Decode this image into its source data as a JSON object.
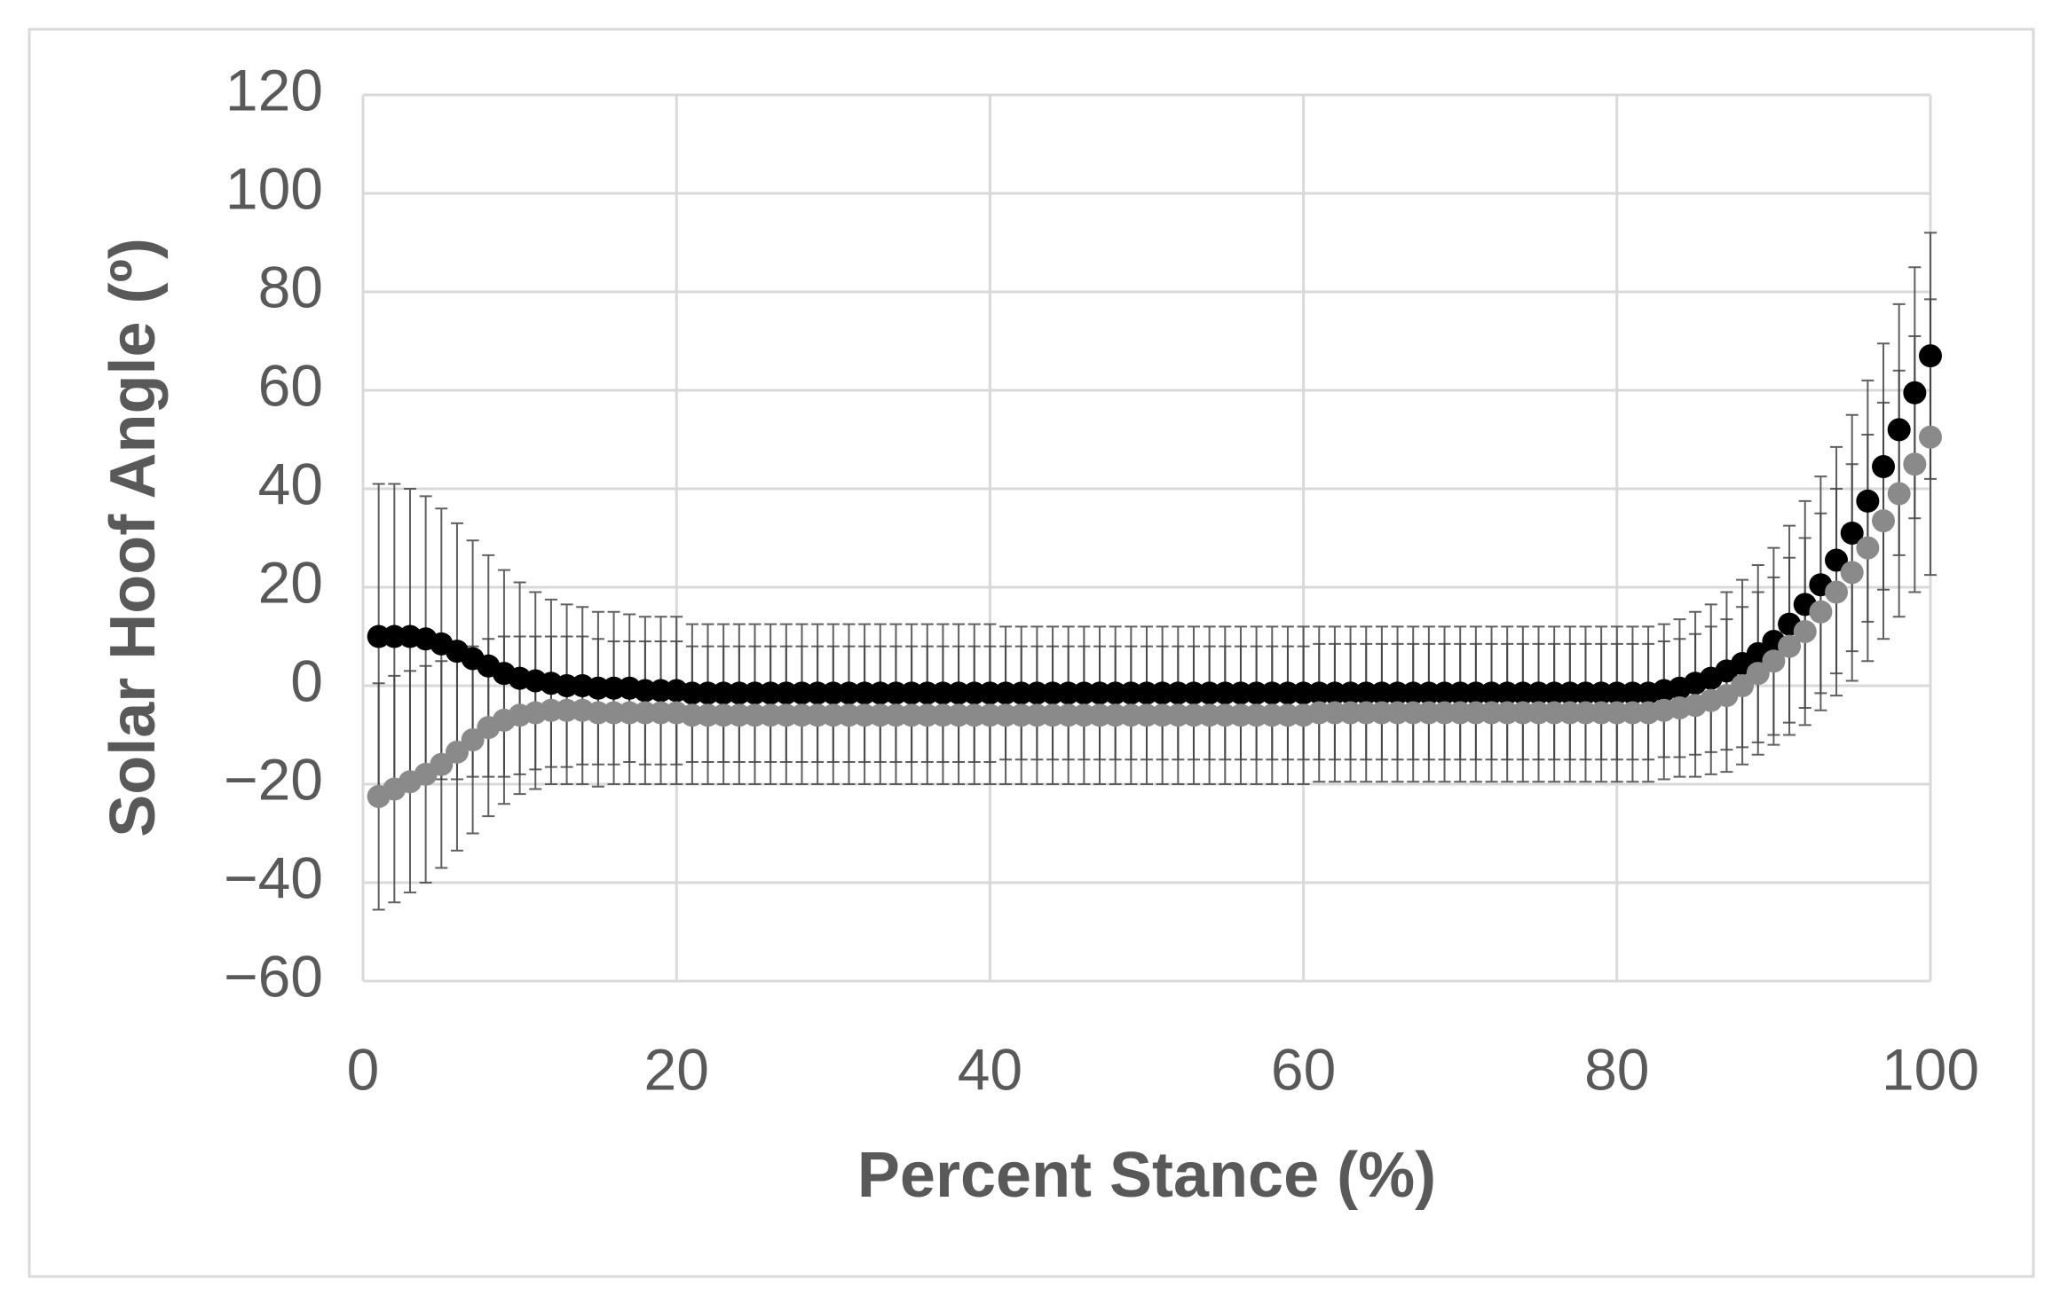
{
  "chart_data": {
    "type": "scatter",
    "xlabel": "Percent Stance (%)",
    "ylabel": "Solar Hoof Angle (º)",
    "x": [
      1,
      2,
      3,
      4,
      5,
      6,
      7,
      8,
      9,
      10,
      11,
      12,
      13,
      14,
      15,
      16,
      17,
      18,
      19,
      20,
      21,
      22,
      23,
      24,
      25,
      26,
      27,
      28,
      29,
      30,
      31,
      32,
      33,
      34,
      35,
      36,
      37,
      38,
      39,
      40,
      41,
      42,
      43,
      44,
      45,
      46,
      47,
      48,
      49,
      50,
      51,
      52,
      53,
      54,
      55,
      56,
      57,
      58,
      59,
      60,
      61,
      62,
      63,
      64,
      65,
      66,
      67,
      68,
      69,
      70,
      71,
      72,
      73,
      74,
      75,
      76,
      77,
      78,
      79,
      80,
      81,
      82,
      83,
      84,
      85,
      86,
      87,
      88,
      89,
      90,
      91,
      92,
      93,
      94,
      95,
      96,
      97,
      98,
      99,
      100
    ],
    "series": [
      {
        "color": "#000000",
        "values": [
          10,
          10,
          10,
          9.5,
          8.5,
          7,
          5.5,
          4,
          2.5,
          1.5,
          1,
          0.5,
          0,
          0,
          -0.5,
          -0.5,
          -0.5,
          -1,
          -1,
          -1,
          -1.5,
          -1.5,
          -1.5,
          -1.5,
          -1.5,
          -1.5,
          -1.5,
          -1.5,
          -1.5,
          -1.5,
          -1.5,
          -1.5,
          -1.5,
          -1.5,
          -1.5,
          -1.5,
          -1.5,
          -1.5,
          -1.5,
          -1.5,
          -1.5,
          -1.5,
          -1.5,
          -1.5,
          -1.5,
          -1.5,
          -1.5,
          -1.5,
          -1.5,
          -1.5,
          -1.5,
          -1.5,
          -1.5,
          -1.5,
          -1.5,
          -1.5,
          -1.5,
          -1.5,
          -1.5,
          -1.5,
          -1.5,
          -1.5,
          -1.5,
          -1.5,
          -1.5,
          -1.5,
          -1.5,
          -1.5,
          -1.5,
          -1.5,
          -1.5,
          -1.5,
          -1.5,
          -1.5,
          -1.5,
          -1.5,
          -1.5,
          -1.5,
          -1.5,
          -1.5,
          -1.5,
          -1.5,
          -1,
          -0.5,
          0.5,
          1.5,
          3,
          4.5,
          6.5,
          9,
          12.5,
          16.5,
          20.5,
          25.5,
          31,
          37.5,
          44.5,
          52,
          59.5,
          67
        ],
        "errors": [
          31,
          31,
          30,
          29,
          27.5,
          26,
          24,
          22.5,
          21,
          19.5,
          18,
          17,
          16.5,
          16,
          15.5,
          15.5,
          15,
          15,
          15,
          15,
          14,
          14,
          14,
          14,
          14,
          14,
          14,
          14,
          14,
          14,
          14,
          14,
          14,
          14,
          14,
          14,
          14,
          14,
          14,
          14,
          13.5,
          13.5,
          13.5,
          13.5,
          13.5,
          13.5,
          13.5,
          13.5,
          13.5,
          13.5,
          13.5,
          13.5,
          13.5,
          13.5,
          13.5,
          13.5,
          13.5,
          13.5,
          13.5,
          13.5,
          13.5,
          13.5,
          13.5,
          13.5,
          13.5,
          13.5,
          13.5,
          13.5,
          13.5,
          13.5,
          13.5,
          13.5,
          13.5,
          13.5,
          13.5,
          13.5,
          13.5,
          13.5,
          13.5,
          13.5,
          13.5,
          13.5,
          13.5,
          14,
          14.5,
          15,
          16,
          17,
          18,
          19,
          20,
          21,
          22,
          23,
          24,
          24.5,
          25,
          25.5,
          25.5,
          25
        ]
      },
      {
        "color": "#8a8a8a",
        "values": [
          -22.5,
          -21,
          -19.5,
          -18,
          -16,
          -13.5,
          -11,
          -8.5,
          -7,
          -6,
          -5.5,
          -5,
          -5,
          -5,
          -5.5,
          -5.5,
          -5.5,
          -5.5,
          -5.5,
          -5.5,
          -6,
          -6,
          -6,
          -6,
          -6,
          -6,
          -6,
          -6,
          -6,
          -6,
          -6,
          -6,
          -6,
          -6,
          -6,
          -6,
          -6,
          -6,
          -6,
          -6,
          -6,
          -6,
          -6,
          -6,
          -6,
          -6,
          -6,
          -6,
          -6,
          -6,
          -6,
          -6,
          -6,
          -6,
          -6,
          -6,
          -6,
          -6,
          -6,
          -6,
          -5.5,
          -5.5,
          -5.5,
          -5.5,
          -5.5,
          -5.5,
          -5.5,
          -5.5,
          -5.5,
          -5.5,
          -5.5,
          -5.5,
          -5.5,
          -5.5,
          -5.5,
          -5.5,
          -5.5,
          -5.5,
          -5.5,
          -5.5,
          -5.5,
          -5.5,
          -5,
          -4.5,
          -4,
          -3,
          -2,
          0,
          2.5,
          5,
          8,
          11,
          15,
          19,
          23,
          28,
          33.5,
          39,
          45,
          50.5
        ],
        "errors": [
          23,
          23,
          22.5,
          22,
          21,
          20,
          19,
          18,
          17,
          16,
          15.5,
          15,
          15,
          15,
          15,
          14.5,
          14.5,
          14.5,
          14.5,
          14.5,
          14,
          14,
          14,
          14,
          14,
          14,
          14,
          14,
          14,
          14,
          14,
          14,
          14,
          14,
          14,
          14,
          14,
          14,
          14,
          14,
          14,
          14,
          14,
          14,
          14,
          14,
          14,
          14,
          14,
          14,
          14,
          14,
          14,
          14,
          14,
          14,
          14,
          14,
          14,
          14,
          14,
          14,
          14,
          14,
          14,
          14,
          14,
          14,
          14,
          14,
          14,
          14,
          14,
          14,
          14,
          14,
          14,
          14,
          14,
          14,
          14,
          14,
          14,
          14,
          14.5,
          15,
          15.5,
          16,
          16.5,
          17,
          18,
          19,
          20,
          21,
          22,
          23,
          24,
          25,
          26,
          28
        ]
      }
    ],
    "xlim": [
      0,
      100
    ],
    "xticks": [
      0,
      20,
      40,
      60,
      80,
      100
    ],
    "ylim": [
      -60,
      120
    ],
    "yticks": [
      {
        "value": -60,
        "label": "−60"
      },
      {
        "value": -40,
        "label": "−40"
      },
      {
        "value": -20,
        "label": "−20"
      },
      0,
      20,
      40,
      60,
      80,
      100,
      120
    ],
    "grid": true
  }
}
